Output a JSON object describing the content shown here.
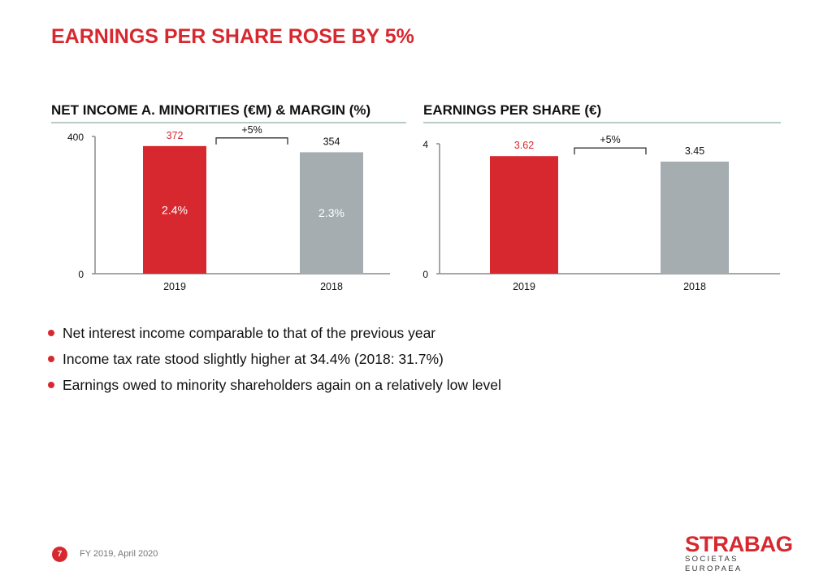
{
  "slide": {
    "title": "EARNINGS PER SHARE ROSE BY 5%",
    "bullets": [
      "Net interest income comparable to that of the previous year",
      "Income tax rate stood slightly higher at 34.4% (2018: 31.7%)",
      "Earnings owed to minority shareholders again on a relatively low level"
    ],
    "page_number": "7",
    "footer": "FY 2019, April 2020",
    "logo": {
      "name": "STRABAG",
      "subtitle": "SOCIETAS EUROPAEA"
    }
  },
  "colors": {
    "accent": "#d7282f",
    "bar_prior": "#a5adb1",
    "axis": "#8a8a8a"
  },
  "chart_data": [
    {
      "type": "bar",
      "title": "NET INCOME A. MINORITIES (€M) & MARGIN (%)",
      "categories": [
        "2019",
        "2018"
      ],
      "values": [
        372,
        354
      ],
      "value_labels": [
        "372",
        "354"
      ],
      "inner_labels": [
        "2.4%",
        "2.3%"
      ],
      "ylim": [
        0,
        400
      ],
      "yticks": [
        "0",
        "400"
      ],
      "annotation": "+5%",
      "xlabel": "",
      "ylabel": "",
      "grid": false
    },
    {
      "type": "bar",
      "title": "EARNINGS PER SHARE (€)",
      "categories": [
        "2019",
        "2018"
      ],
      "values": [
        3.62,
        3.45
      ],
      "value_labels": [
        "3.62",
        "3.45"
      ],
      "inner_labels": [
        "",
        ""
      ],
      "ylim": [
        0,
        4
      ],
      "yticks": [
        "0",
        "4"
      ],
      "annotation": "+5%",
      "xlabel": "",
      "ylabel": "",
      "grid": false
    }
  ]
}
